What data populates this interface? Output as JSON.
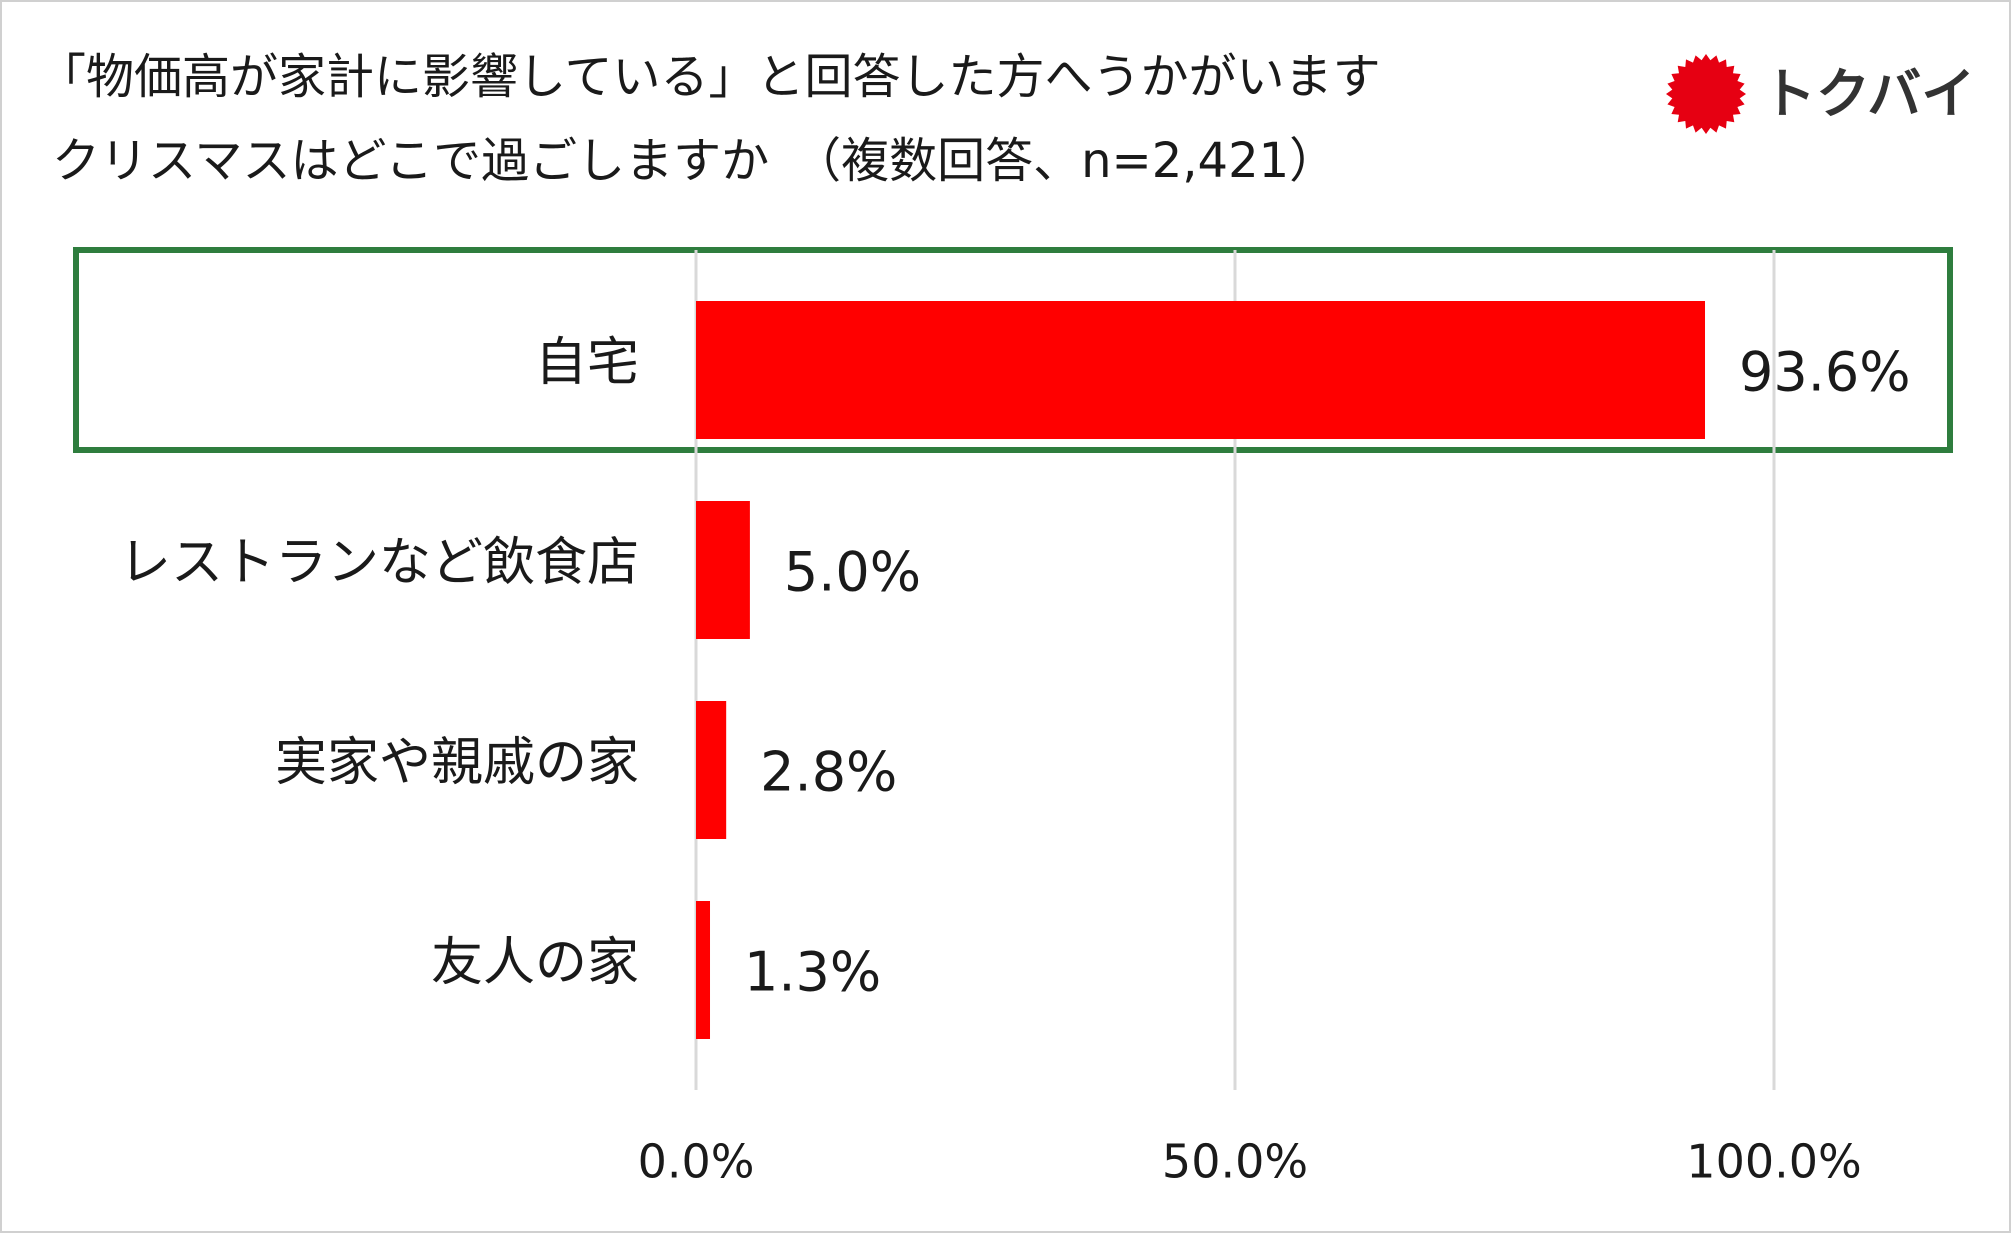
{
  "chart_data": {
    "type": "bar",
    "orientation": "horizontal",
    "title": [
      "「物価高が家計に影響している」と回答した方へうかがいます",
      "クリスマスはどこで過ごしますか　（複数回答、n=2,421）"
    ],
    "logo": "トクバイ",
    "categories": [
      "自宅",
      "レストランなど飲食店",
      "実家や親戚の家",
      "友人の家"
    ],
    "values": [
      93.6,
      5.0,
      2.8,
      1.3
    ],
    "value_labels": [
      "93.6%",
      "5.0%",
      "2.8%",
      "1.3%"
    ],
    "color": "#ff0000",
    "xlim": [
      0,
      100
    ],
    "xticks": [
      {
        "value": 0,
        "label": "0.0%"
      },
      {
        "value": 50,
        "label": "50.0%"
      },
      {
        "value": 100,
        "label": "100.0%"
      }
    ],
    "grid": true
  }
}
